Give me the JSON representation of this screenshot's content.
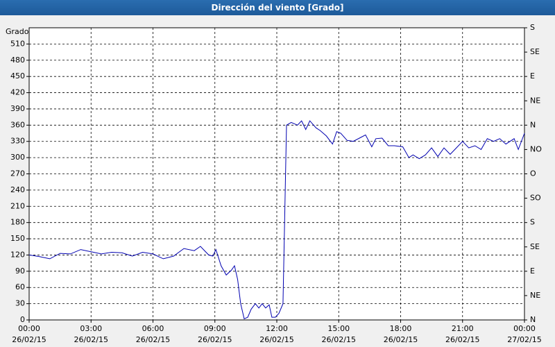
{
  "chart_data": {
    "type": "line",
    "title": "Dirección del viento [Grado]",
    "ylabel": "Grado",
    "color": "#0000b0",
    "grid": true,
    "xlim": [
      0,
      24
    ],
    "ylim": [
      0,
      540
    ],
    "y2lim": [
      0,
      540
    ],
    "xticks": [
      {
        "value": 0,
        "label": "00:00\n26/02/15"
      },
      {
        "value": 3,
        "label": "03:00\n26/02/15"
      },
      {
        "value": 6,
        "label": "06:00\n26/02/15"
      },
      {
        "value": 9,
        "label": "09:00\n26/02/15"
      },
      {
        "value": 12,
        "label": "12:00\n26/02/15"
      },
      {
        "value": 15,
        "label": "15:00\n26/02/15"
      },
      {
        "value": 18,
        "label": "18:00\n26/02/15"
      },
      {
        "value": 21,
        "label": "21:00\n26/02/15"
      },
      {
        "value": 24,
        "label": "00:00\n27/02/15"
      }
    ],
    "yticks": [
      0,
      30,
      60,
      90,
      120,
      150,
      180,
      210,
      240,
      270,
      300,
      330,
      360,
      390,
      420,
      450,
      480,
      510
    ],
    "y2ticks": [
      {
        "value": 0,
        "label": "N"
      },
      {
        "value": 45,
        "label": "NE"
      },
      {
        "value": 90,
        "label": "E"
      },
      {
        "value": 135,
        "label": "SE"
      },
      {
        "value": 180,
        "label": "S"
      },
      {
        "value": 225,
        "label": "SO"
      },
      {
        "value": 270,
        "label": "O"
      },
      {
        "value": 315,
        "label": "NO"
      },
      {
        "value": 360,
        "label": "N"
      },
      {
        "value": 405,
        "label": "NE"
      },
      {
        "value": 450,
        "label": "E"
      },
      {
        "value": 495,
        "label": "SE"
      },
      {
        "value": 540,
        "label": "S"
      }
    ],
    "x": [
      0,
      0.5,
      1,
      1.5,
      2,
      2.5,
      3,
      3.5,
      4,
      4.5,
      5,
      5.5,
      6,
      6.5,
      7,
      7.5,
      8,
      8.3,
      8.7,
      8.9,
      9.05,
      9.3,
      9.55,
      9.8,
      9.95,
      10.1,
      10.25,
      10.42,
      10.59,
      10.76,
      10.96,
      11.13,
      11.29,
      11.46,
      11.63,
      11.76,
      11.93,
      12.1,
      12.3,
      12.47,
      12.7,
      13.0,
      13.2,
      13.4,
      13.6,
      13.9,
      14.1,
      14.4,
      14.7,
      14.9,
      15.1,
      15.4,
      15.7,
      16.1,
      16.3,
      16.6,
      16.8,
      17.1,
      17.4,
      17.7,
      18.1,
      18.4,
      18.6,
      18.9,
      19.2,
      19.5,
      19.8,
      20.1,
      20.4,
      20.7,
      21.0,
      21.3,
      21.6,
      21.9,
      22.2,
      22.5,
      22.8,
      23.1,
      23.5,
      23.7,
      24.0
    ],
    "values": [
      120,
      117,
      113,
      123,
      122,
      130,
      126,
      122,
      125,
      124,
      118,
      125,
      122,
      113,
      118,
      132,
      128,
      136,
      120,
      118,
      130,
      100,
      83,
      92,
      100,
      75,
      30,
      2,
      5,
      20,
      30,
      22,
      30,
      22,
      28,
      5,
      5,
      12,
      30,
      360,
      365,
      360,
      368,
      352,
      368,
      355,
      350,
      340,
      325,
      348,
      345,
      332,
      330,
      338,
      342,
      320,
      335,
      336,
      322,
      322,
      320,
      300,
      305,
      298,
      305,
      318,
      302,
      318,
      306,
      318,
      330,
      318,
      322,
      315,
      335,
      330,
      335,
      325,
      335,
      315,
      345
    ]
  }
}
